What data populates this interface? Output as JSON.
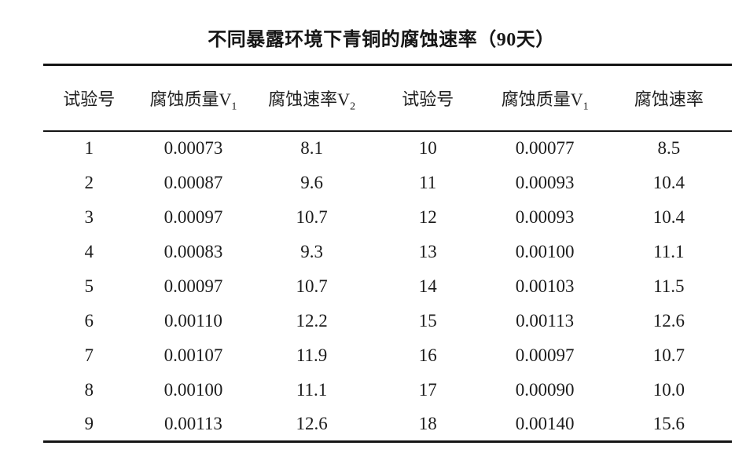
{
  "page": {
    "title": "不同暴露环境下青铜的腐蚀速率（90天）"
  },
  "colors": {
    "background": "#ffffff",
    "text": "#1c1c1c",
    "rule": "#141414"
  },
  "table": {
    "headers": [
      {
        "label": "试验号",
        "sub": ""
      },
      {
        "label": "腐蚀质量V",
        "sub": "1"
      },
      {
        "label": "腐蚀速率V",
        "sub": "2"
      },
      {
        "label": "试验号",
        "sub": ""
      },
      {
        "label": "腐蚀质量V",
        "sub": "1"
      },
      {
        "label": "腐蚀速率",
        "sub": ""
      }
    ]
  },
  "chart_data": {
    "type": "table",
    "title": "不同暴露环境下青铜的腐蚀速率（90天）",
    "columns": [
      "试验号",
      "腐蚀质量V1",
      "腐蚀速率V2",
      "试验号",
      "腐蚀质量V1",
      "腐蚀速率"
    ],
    "rows": [
      [
        "1",
        "0.00073",
        "8.1",
        "10",
        "0.00077",
        "8.5"
      ],
      [
        "2",
        "0.00087",
        "9.6",
        "11",
        "0.00093",
        "10.4"
      ],
      [
        "3",
        "0.00097",
        "10.7",
        "12",
        "0.00093",
        "10.4"
      ],
      [
        "4",
        "0.00083",
        "9.3",
        "13",
        "0.00100",
        "11.1"
      ],
      [
        "5",
        "0.00097",
        "10.7",
        "14",
        "0.00103",
        "11.5"
      ],
      [
        "6",
        "0.00110",
        "12.2",
        "15",
        "0.00113",
        "12.6"
      ],
      [
        "7",
        "0.00107",
        "11.9",
        "16",
        "0.00097",
        "10.7"
      ],
      [
        "8",
        "0.00100",
        "11.1",
        "17",
        "0.00090",
        "10.0"
      ],
      [
        "9",
        "0.00113",
        "12.6",
        "18",
        "0.00140",
        "15.6"
      ]
    ]
  }
}
